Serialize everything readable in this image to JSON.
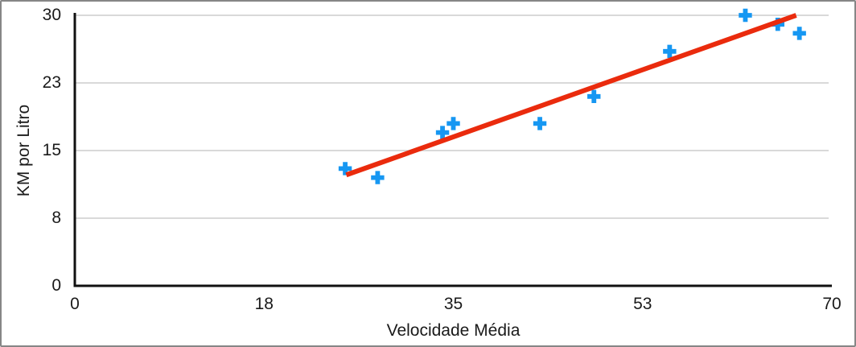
{
  "chart_data": {
    "type": "scatter",
    "title": "",
    "xlabel": "Velocidade Média",
    "ylabel": "KM por Litro",
    "xlim": [
      0,
      70
    ],
    "ylim": [
      0,
      30
    ],
    "grid": "horizontal",
    "legend": "none",
    "x_ticks": [
      {
        "value": 0,
        "label": "0"
      },
      {
        "value": 17.5,
        "label": "18"
      },
      {
        "value": 35,
        "label": "35"
      },
      {
        "value": 52.5,
        "label": "53"
      },
      {
        "value": 70,
        "label": "70"
      }
    ],
    "y_ticks": [
      {
        "value": 0,
        "label": "0"
      },
      {
        "value": 7.5,
        "label": "8"
      },
      {
        "value": 15,
        "label": "15"
      },
      {
        "value": 22.5,
        "label": "23"
      },
      {
        "value": 30,
        "label": "30"
      }
    ],
    "series": [
      {
        "name": "KM por Litro",
        "marker": "plus",
        "color": "#1697f2",
        "points": [
          {
            "x": 25,
            "y": 13
          },
          {
            "x": 28,
            "y": 12
          },
          {
            "x": 34,
            "y": 17
          },
          {
            "x": 35,
            "y": 18
          },
          {
            "x": 43,
            "y": 18
          },
          {
            "x": 48,
            "y": 21
          },
          {
            "x": 55,
            "y": 26
          },
          {
            "x": 62,
            "y": 30
          },
          {
            "x": 65,
            "y": 29
          },
          {
            "x": 67,
            "y": 28
          }
        ]
      }
    ],
    "trendline": {
      "x1": 25.1,
      "y1": 12.3,
      "x2": 66.7,
      "y2": 30.0,
      "color": "#ea2b0d"
    },
    "colors": {
      "axis": "#111111",
      "gridline": "#d9d9d9",
      "tick_text": "#1a1a1a",
      "frame_border": "#868686"
    }
  }
}
